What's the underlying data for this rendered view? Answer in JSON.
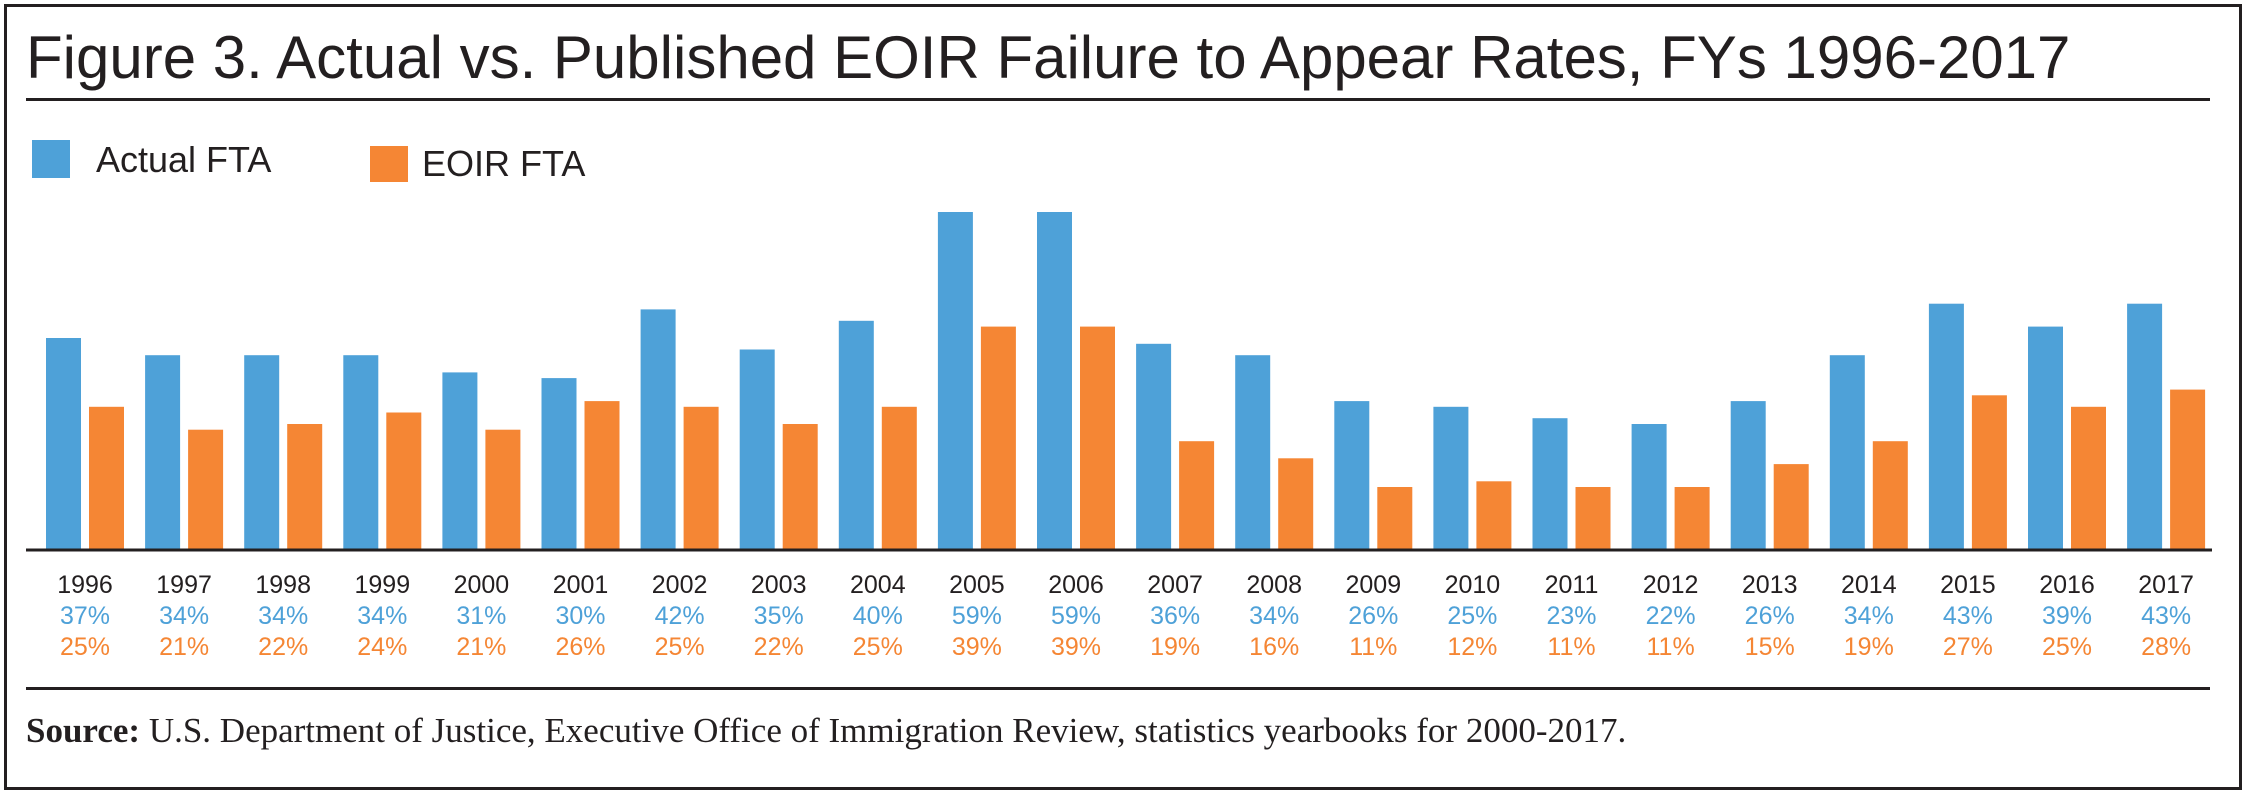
{
  "title": "Figure 3. Actual vs. Published EOIR Failure to Appear Rates, FYs 1996-2017",
  "source": {
    "label": "Source:",
    "text": " U.S. Department of Justice, Executive Office of Immigration Review, statistics yearbooks for 2000-2017."
  },
  "colors": {
    "actual": "#4ea1d8",
    "eoir": "#f58634",
    "text": "#231f20"
  },
  "chart_data": {
    "type": "bar",
    "title": "Figure 3. Actual vs. Published EOIR Failure to Appear Rates, FYs 1996-2017",
    "xlabel": "",
    "ylabel": "",
    "legend_position": "top-left",
    "grid": false,
    "ylim": [
      0,
      59
    ],
    "categories": [
      "1996",
      "1997",
      "1998",
      "1999",
      "2000",
      "2001",
      "2002",
      "2003",
      "2004",
      "2005",
      "2006",
      "2007",
      "2008",
      "2009",
      "2010",
      "2011",
      "2012",
      "2013",
      "2014",
      "2015",
      "2016",
      "2017"
    ],
    "series": [
      {
        "name": "Actual FTA",
        "color": "#4ea1d8",
        "values": [
          37,
          34,
          34,
          34,
          31,
          30,
          42,
          35,
          40,
          59,
          59,
          36,
          34,
          26,
          25,
          23,
          22,
          26,
          34,
          43,
          39,
          43
        ],
        "labels": [
          "37%",
          "34%",
          "34%",
          "34%",
          "31%",
          "30%",
          "42%",
          "35%",
          "40%",
          "59%",
          "59%",
          "36%",
          "34%",
          "26%",
          "25%",
          "23%",
          "22%",
          "26%",
          "34%",
          "43%",
          "39%",
          "43%"
        ]
      },
      {
        "name": "EOIR FTA",
        "color": "#f58634",
        "values": [
          25,
          21,
          22,
          24,
          21,
          26,
          25,
          22,
          25,
          39,
          39,
          19,
          16,
          11,
          12,
          11,
          11,
          15,
          19,
          27,
          25,
          28
        ],
        "labels": [
          "25%",
          "21%",
          "22%",
          "24%",
          "21%",
          "26%",
          "25%",
          "22%",
          "25%",
          "39%",
          "39%",
          "19%",
          "16%",
          "11%",
          "12%",
          "11%",
          "11%",
          "15%",
          "19%",
          "27%",
          "25%",
          "28%"
        ]
      }
    ]
  }
}
